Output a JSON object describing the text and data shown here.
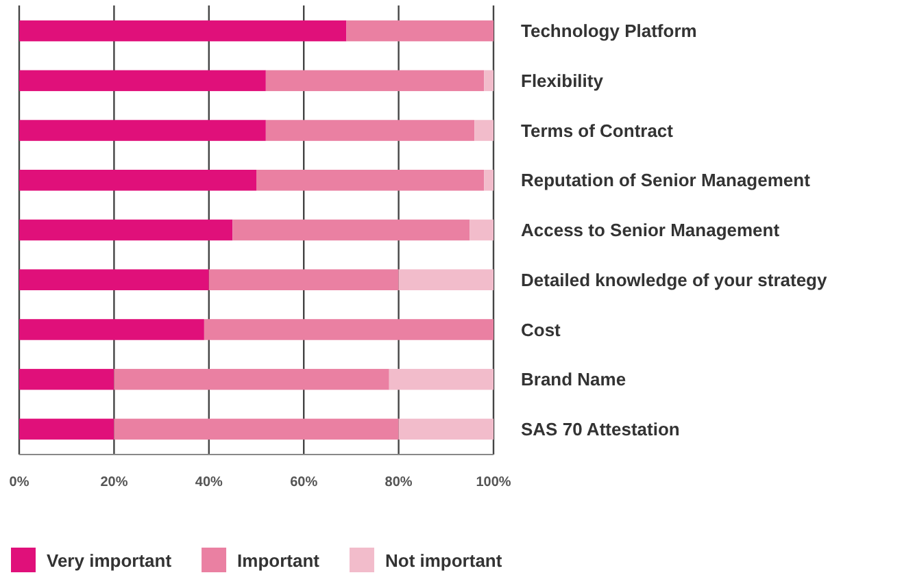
{
  "chart_data": {
    "type": "bar",
    "orientation": "horizontal",
    "stacked": true,
    "categories": [
      "Technology Platform",
      "Flexibility",
      "Terms of Contract",
      "Reputation of Senior Management",
      "Access to Senior Management",
      "Detailed knowledge of your strategy",
      "Cost",
      "Brand Name",
      "SAS 70 Attestation"
    ],
    "series": [
      {
        "name": "Very important",
        "color": "#e0107a",
        "values": [
          69,
          52,
          52,
          50,
          45,
          40,
          39,
          20,
          20
        ]
      },
      {
        "name": "Important",
        "color": "#ea80a2",
        "values": [
          31,
          46,
          44,
          48,
          50,
          40,
          61,
          58,
          60
        ]
      },
      {
        "name": "Not important",
        "color": "#f2bccb",
        "values": [
          0,
          2,
          4,
          2,
          5,
          20,
          0,
          22,
          20
        ]
      }
    ],
    "xlim": [
      0,
      100
    ],
    "xticks": [
      {
        "value": 0,
        "label": "0%"
      },
      {
        "value": 20,
        "label": "20%"
      },
      {
        "value": 40,
        "label": "40%"
      },
      {
        "value": 60,
        "label": "60%"
      },
      {
        "value": 80,
        "label": "80%"
      },
      {
        "value": 100,
        "label": "100%"
      }
    ],
    "grid": "x",
    "legend": "bottom"
  }
}
